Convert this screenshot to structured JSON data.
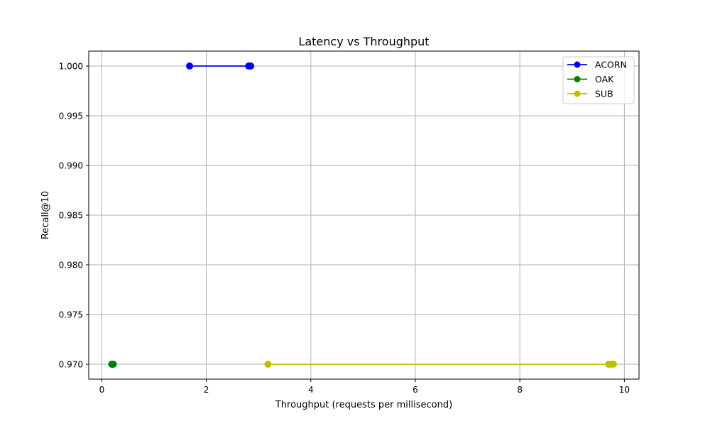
{
  "chart_data": {
    "type": "line",
    "title": "Latency vs Throughput",
    "xlabel": "Throughput (requests per millisecond)",
    "ylabel": "Recall@10",
    "xlim": [
      -0.25,
      10.28
    ],
    "ylim": [
      0.9685,
      1.0015
    ],
    "xticks": [
      0,
      2,
      4,
      6,
      8,
      10
    ],
    "xtick_labels": [
      "0",
      "2",
      "4",
      "6",
      "8",
      "10"
    ],
    "yticks": [
      0.97,
      0.975,
      0.98,
      0.985,
      0.99,
      0.995,
      1.0
    ],
    "ytick_labels": [
      "0.970",
      "0.975",
      "0.980",
      "0.985",
      "0.990",
      "0.995",
      "1.000"
    ],
    "grid": true,
    "legend_position": "top-right",
    "series": [
      {
        "name": "ACORN",
        "color": "#0000ff",
        "x": [
          1.68,
          2.81,
          2.83,
          2.85
        ],
        "y": [
          1.0,
          1.0,
          1.0,
          1.0
        ]
      },
      {
        "name": "OAK",
        "color": "#008000",
        "x": [
          0.19,
          0.2,
          0.21,
          0.22
        ],
        "y": [
          0.97,
          0.97,
          0.97,
          0.97
        ]
      },
      {
        "name": "SUB",
        "color": "#bfbf00",
        "x": [
          3.18,
          9.7,
          9.75,
          9.79
        ],
        "y": [
          0.97,
          0.97,
          0.97,
          0.97
        ]
      }
    ]
  }
}
